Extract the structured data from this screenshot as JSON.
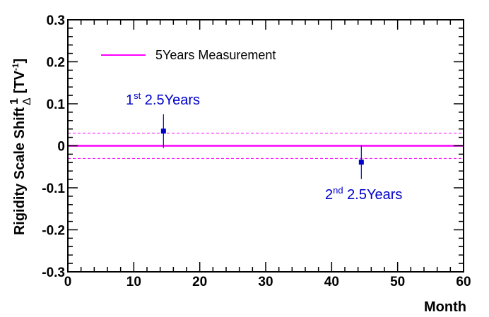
{
  "chart_data": {
    "type": "scatter",
    "xlabel": "Month",
    "ylabel": {
      "main": "Rigidity Scale Shift",
      "fraction_numerator": "1",
      "fraction_denominator": "Δ",
      "unit_open": "[TV",
      "unit_exponent": "-1",
      "unit_close": "]"
    },
    "xlim": [
      0,
      60
    ],
    "ylim": [
      -0.3,
      0.3
    ],
    "x_ticks": [
      0,
      10,
      20,
      30,
      40,
      50,
      60
    ],
    "x_tick_labels": [
      "0",
      "10",
      "20",
      "30",
      "40",
      "50",
      "60"
    ],
    "y_ticks": [
      -0.3,
      -0.2,
      -0.1,
      0,
      0.1,
      0.2,
      0.3
    ],
    "y_tick_labels": [
      "-0.3",
      "-0.2",
      "-0.1",
      "0",
      "0.1",
      "0.2",
      "0.3"
    ],
    "measurement": {
      "name": "5Years Measurement",
      "value": 0,
      "band": [
        -0.03,
        0.03
      ],
      "color": "#ff00ff"
    },
    "series": [
      {
        "name": "2.5Years",
        "color": "#0000cc",
        "points": [
          {
            "x": 14.5,
            "y": 0.035,
            "err_low": 0.04,
            "err_high": 0.04
          },
          {
            "x": 44.5,
            "y": -0.039,
            "err_low": 0.04,
            "err_high": 0.04
          }
        ]
      }
    ],
    "annotations": [
      {
        "prefix": "1",
        "sup": "st",
        "suffix": " 2.5Years",
        "color": "#0000cc"
      },
      {
        "prefix": "2",
        "sup": "nd",
        "suffix": " 2.5Years",
        "color": "#0000cc"
      }
    ]
  }
}
